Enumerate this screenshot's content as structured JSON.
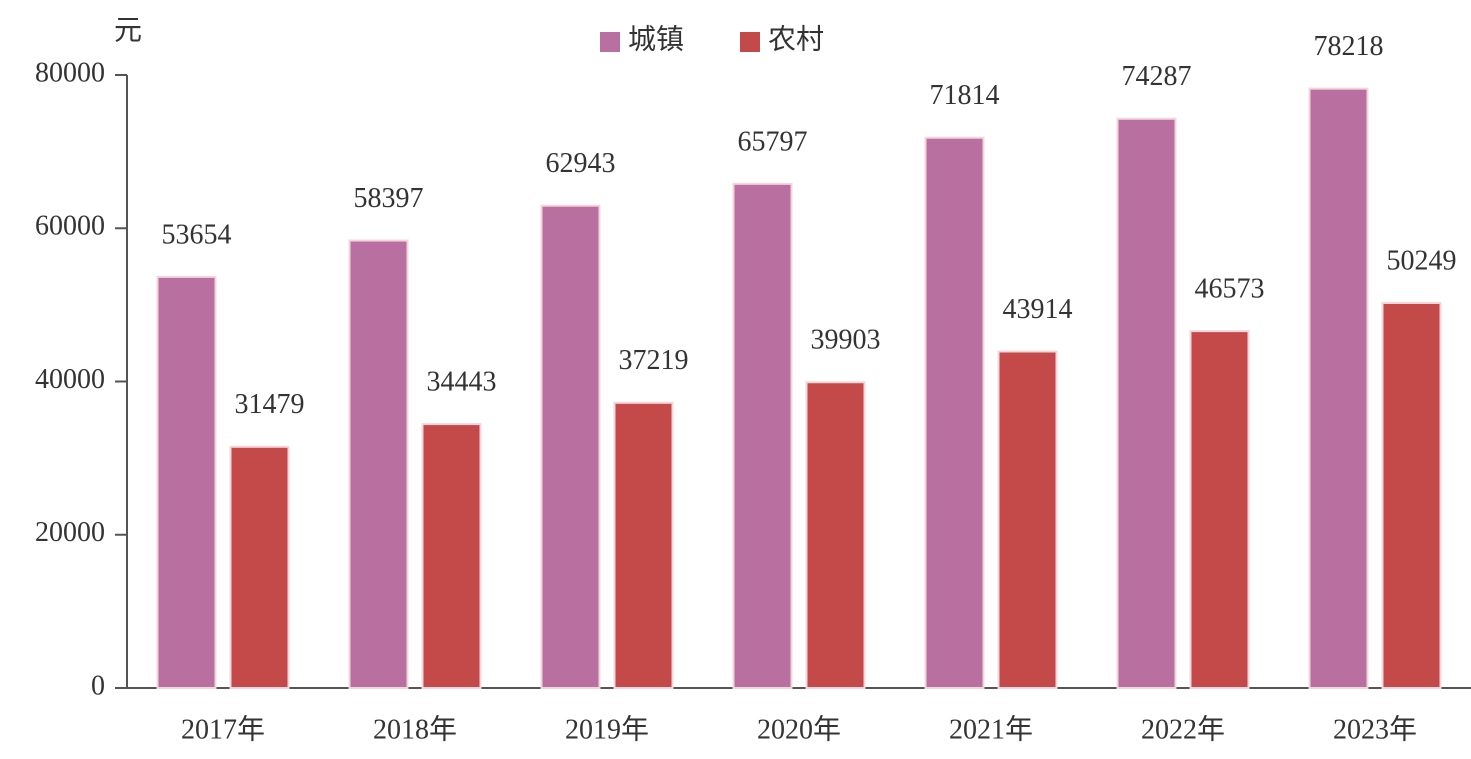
{
  "chart_data": {
    "type": "bar",
    "y_label": "元",
    "categories": [
      "2017年",
      "2018年",
      "2019年",
      "2020年",
      "2021年",
      "2022年",
      "2023年"
    ],
    "series": [
      {
        "name": "城镇",
        "color": "#b96fa0",
        "values": [
          53654,
          58397,
          62943,
          65797,
          71814,
          74287,
          78218
        ]
      },
      {
        "name": "农村",
        "color": "#c44a4a",
        "values": [
          31479,
          34443,
          37219,
          39903,
          43914,
          46573,
          50249
        ]
      }
    ],
    "ylim": [
      0,
      80000
    ],
    "yticks": [
      0,
      20000,
      40000,
      60000,
      80000
    ],
    "legend": "top"
  }
}
